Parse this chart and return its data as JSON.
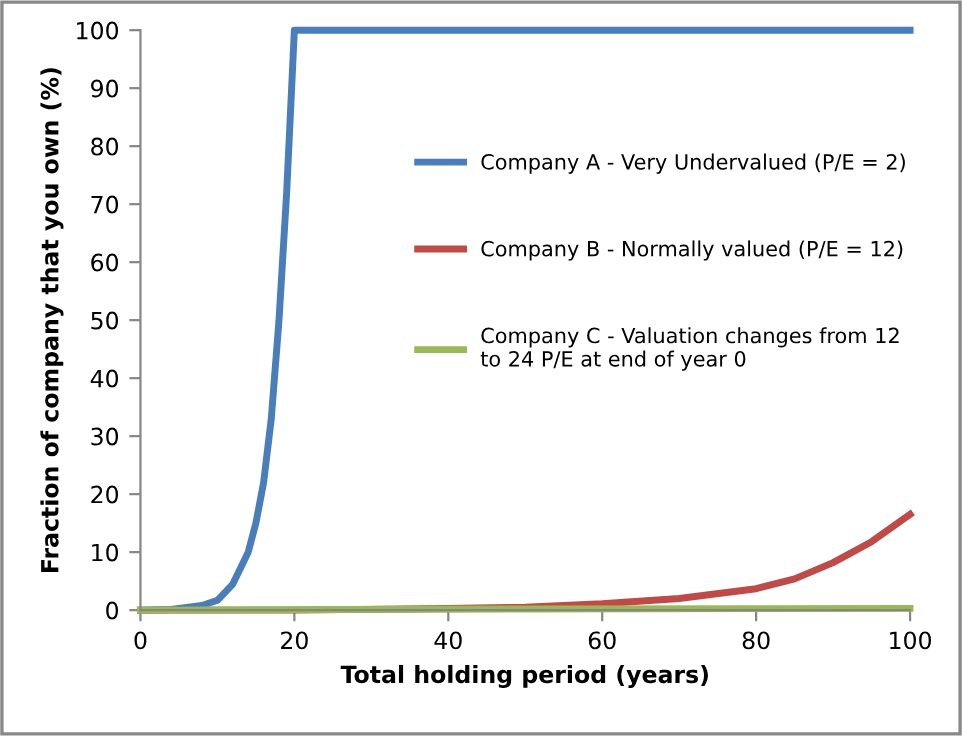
{
  "chart_data": {
    "type": "line",
    "xlabel": "Total holding period (years)",
    "ylabel": "Fraction of company that you own (%)",
    "xlim": [
      0,
      100
    ],
    "xticks": [
      0,
      20,
      40,
      60,
      80,
      100
    ],
    "ylim": [
      0,
      100
    ],
    "yticks": [
      0,
      10,
      20,
      30,
      40,
      50,
      60,
      70,
      80,
      90,
      100
    ],
    "grid": false,
    "legend": "right",
    "marker": "none",
    "line_style": "solid",
    "series": [
      {
        "name": "Company A - Very Undervalued (P/E = 2)",
        "color": "#4a7ebb",
        "x": [
          0,
          4,
          8,
          10,
          12,
          14,
          15,
          16,
          17,
          18,
          19,
          20,
          100
        ],
        "values": [
          0,
          0.1,
          0.8,
          1.7,
          4.5,
          10,
          15,
          22,
          33,
          50,
          72,
          100,
          100
        ]
      },
      {
        "name": "Company B - Normally valued (P/E = 12)",
        "color": "#be4b48",
        "x": [
          0,
          20,
          40,
          50,
          60,
          70,
          80,
          85,
          90,
          95,
          100
        ],
        "values": [
          0,
          0,
          0.3,
          0.5,
          1.1,
          2,
          3.7,
          5.4,
          8.2,
          11.8,
          16.5
        ]
      },
      {
        "name": "Company C - Valuation changes from 12\nto 24 P/E at end of year 0",
        "color": "#98b954",
        "x": [
          0,
          50,
          100
        ],
        "values": [
          0,
          0.2,
          0.3
        ]
      }
    ]
  }
}
